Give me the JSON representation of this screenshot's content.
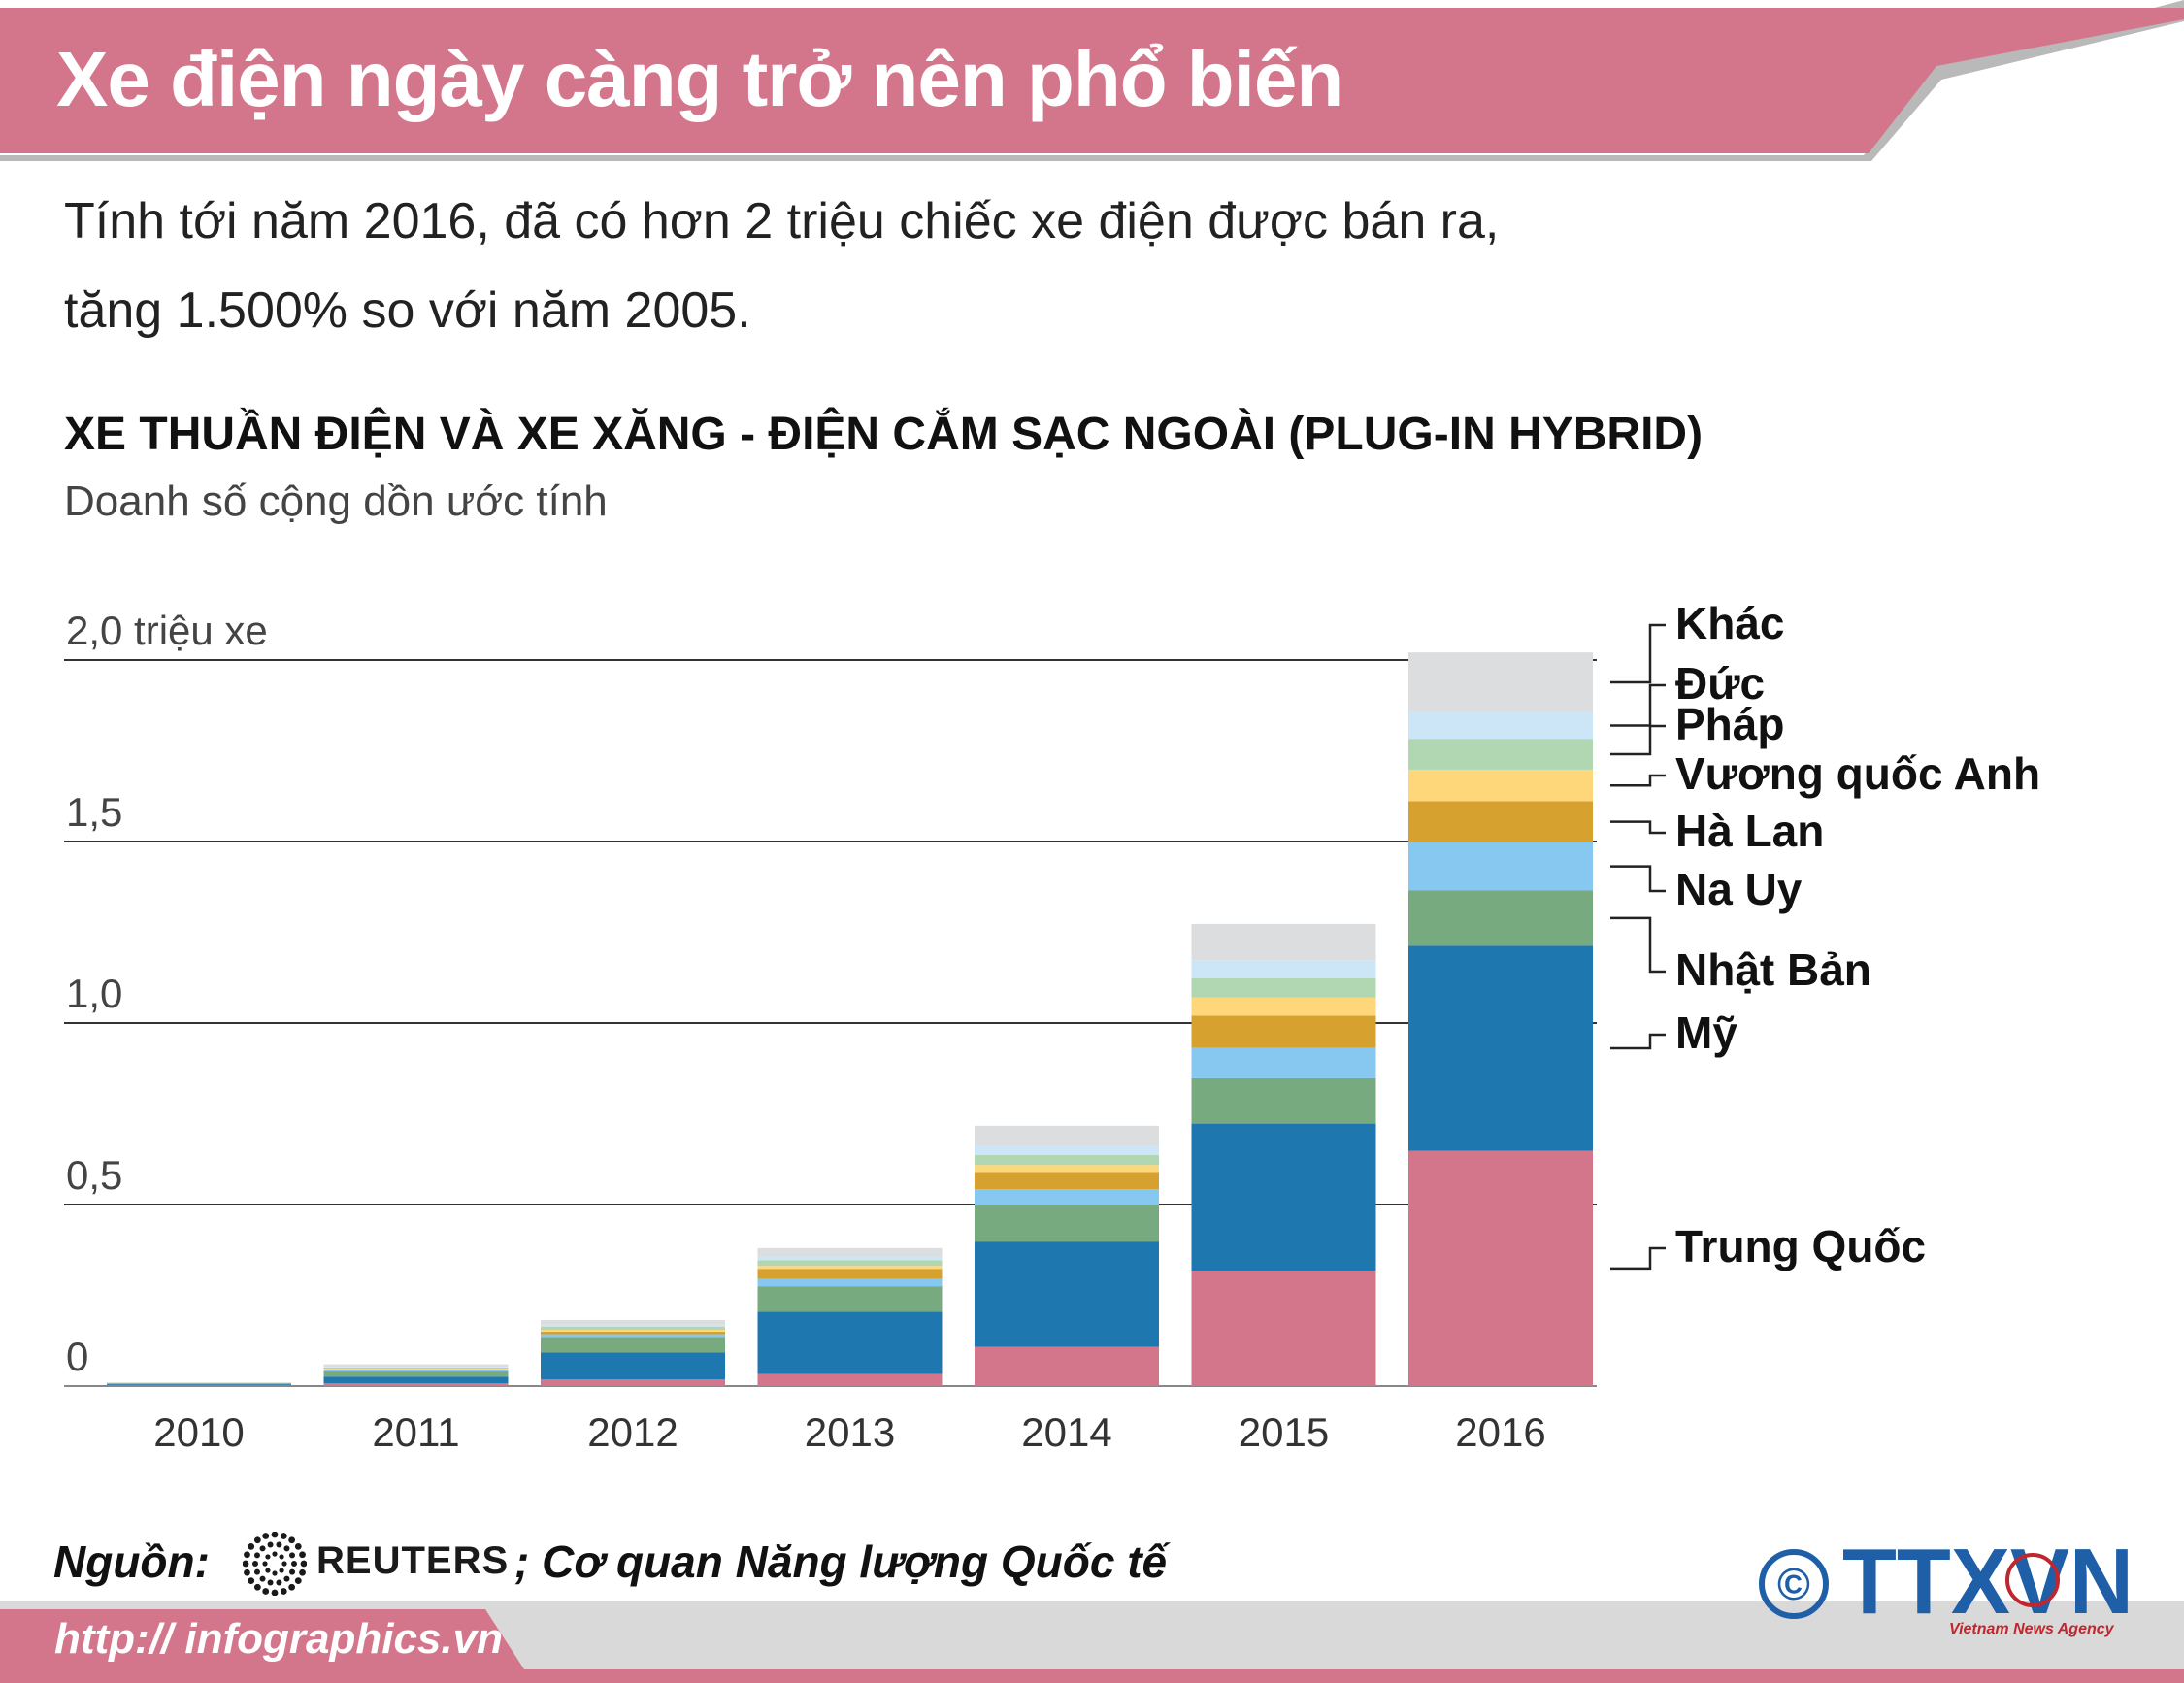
{
  "header": {
    "title": "Xe điện ngày càng trở nên phổ biến",
    "intro_line1": "Tính tới năm 2016, đã có hơn 2 triệu chiếc xe điện được bán ra,",
    "intro_line2": "tăng 1.500% so với năm 2005."
  },
  "chart_data": {
    "type": "bar",
    "stacked": true,
    "title": "XE THUẦN ĐIỆN VÀ XE XĂNG - ĐIỆN CẮM SẠC NGOÀI (PLUG-IN HYBRID)",
    "subtitle": "Doanh số cộng dồn ước tính",
    "xlabel": "",
    "ylabel": "",
    "ylim": [
      0,
      2.0
    ],
    "y_ticks": [
      0,
      0.5,
      1.0,
      1.5,
      2.0
    ],
    "y_tick_labels": [
      "0",
      "0,5",
      "1,0",
      "1,5",
      "2,0 triệu xe"
    ],
    "grid": true,
    "legend_position": "right",
    "categories": [
      "2010",
      "2011",
      "2012",
      "2013",
      "2014",
      "2015",
      "2016"
    ],
    "series": [
      {
        "name": "Trung Quốc",
        "color": "#d3768b",
        "values": [
          0.002,
          0.008,
          0.018,
          0.033,
          0.108,
          0.318,
          0.648
        ]
      },
      {
        "name": "Mỹ",
        "color": "#1f77b0",
        "values": [
          0.003,
          0.018,
          0.075,
          0.172,
          0.29,
          0.405,
          0.565
        ]
      },
      {
        "name": "Nhật Bản",
        "color": "#77aa7f",
        "values": [
          0.002,
          0.014,
          0.04,
          0.07,
          0.1,
          0.125,
          0.152
        ]
      },
      {
        "name": "Na Uy",
        "color": "#87c8f0",
        "values": [
          0.001,
          0.004,
          0.01,
          0.02,
          0.044,
          0.084,
          0.133
        ]
      },
      {
        "name": "Hà Lan",
        "color": "#d6a12f",
        "values": [
          0.0,
          0.002,
          0.007,
          0.028,
          0.045,
          0.088,
          0.113
        ]
      },
      {
        "name": "Vương quốc Anh",
        "color": "#fed77a",
        "values": [
          0.0,
          0.002,
          0.005,
          0.008,
          0.022,
          0.05,
          0.087
        ]
      },
      {
        "name": "Pháp",
        "color": "#b0d7b1",
        "values": [
          0.001,
          0.003,
          0.009,
          0.016,
          0.028,
          0.053,
          0.085
        ]
      },
      {
        "name": "Đức",
        "color": "#cce6f8",
        "values": [
          0.0,
          0.002,
          0.005,
          0.01,
          0.025,
          0.05,
          0.073
        ]
      },
      {
        "name": "Khác",
        "color": "#dcdddf",
        "values": [
          0.001,
          0.007,
          0.013,
          0.023,
          0.055,
          0.1,
          0.165
        ]
      }
    ]
  },
  "footer": {
    "source_label": "Nguồn:",
    "reuters": "REUTERS",
    "source_extra": "; Cơ quan Năng lượng Quốc tế",
    "url": "http:// infographics.vn",
    "copyright": "©",
    "agency_logo": "TTXVN",
    "agency_name": "Vietnam News Agency"
  },
  "colors": {
    "banner": "#d3768b",
    "banner_shadow": "#b9b9b9",
    "agency_blue": "#1e5fa8",
    "agency_red": "#c0262d"
  }
}
